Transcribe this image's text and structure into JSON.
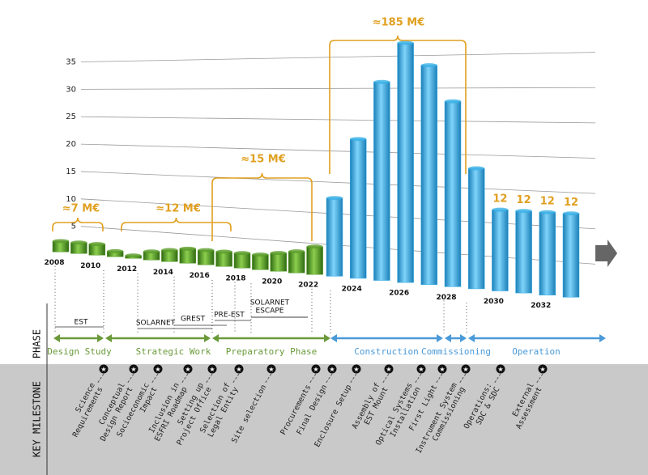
{
  "chart_data": {
    "type": "bar",
    "categories": [
      "2008",
      null,
      "2010",
      null,
      "2012",
      null,
      "2014",
      null,
      "2016",
      null,
      "2018",
      null,
      "2020",
      null,
      "2022",
      null,
      "2024",
      null,
      "2026",
      null,
      "2028",
      null,
      "2030",
      null,
      "2032",
      null
    ],
    "values": [
      2,
      2,
      2,
      1,
      0.5,
      1.5,
      2,
      2.5,
      2.5,
      2.5,
      2.5,
      2.5,
      3,
      3.5,
      4.5,
      12.5,
      22,
      31,
      37,
      33.5,
      28,
      18,
      12,
      12,
      12,
      12
    ],
    "value_labels": [
      null,
      null,
      null,
      null,
      null,
      null,
      null,
      null,
      null,
      null,
      null,
      null,
      null,
      null,
      null,
      null,
      null,
      null,
      null,
      null,
      null,
      null,
      "12",
      "12",
      "12",
      "12"
    ],
    "colors": [
      "#5c9e2c",
      "#5c9e2c",
      "#5c9e2c",
      "#5c9e2c",
      "#5c9e2c",
      "#5c9e2c",
      "#5c9e2c",
      "#5c9e2c",
      "#5c9e2c",
      "#5c9e2c",
      "#5c9e2c",
      "#5c9e2c",
      "#5c9e2c",
      "#5c9e2c",
      "#5c9e2c",
      "#3bb0e6",
      "#3bb0e6",
      "#3bb0e6",
      "#3bb0e6",
      "#3bb0e6",
      "#3bb0e6",
      "#3bb0e6",
      "#3bb0e6",
      "#3bb0e6",
      "#3bb0e6",
      "#3bb0e6"
    ],
    "ylim": [
      0,
      40
    ],
    "yticks": [
      5,
      10,
      15,
      20,
      25,
      30,
      35
    ],
    "grid": true,
    "annotations": [
      "≈7 M€",
      "≈12 M€",
      "≈15 M€",
      "≈185 M€"
    ]
  },
  "phase_label": "PHASE",
  "milestone_label": "KEY MILESTONE",
  "programs": [
    "EST",
    "SOLARNET",
    "GREST",
    "PRE-EST",
    "SOLARNET",
    "ESCAPE"
  ],
  "phases": [
    "Design Study",
    "Strategic Work",
    "Preparatory Phase",
    "Construction",
    "Commissioning",
    "Operation"
  ],
  "milestones": [
    [
      "Science",
      "Requirements"
    ],
    [
      "Conceptual",
      "Design Report"
    ],
    [
      "Socioeconomic",
      "Impact"
    ],
    [
      "Inclusion in",
      "ESFRI Roadmap"
    ],
    [
      "Setting up",
      "Project Office"
    ],
    [
      "Selection of",
      "Legal Entity"
    ],
    [
      "Site selection"
    ],
    [
      "Procurements"
    ],
    [
      "Final Design"
    ],
    [
      "Enclosure Setup"
    ],
    [
      "Assembly of",
      "EST Mount"
    ],
    [
      "Optical Systems",
      "Installation"
    ],
    [
      "First Light"
    ],
    [
      "Instrument System",
      "Commissioning"
    ],
    [
      "Operations:",
      "SDC & SDC"
    ],
    [
      "External",
      "Assessment"
    ]
  ]
}
